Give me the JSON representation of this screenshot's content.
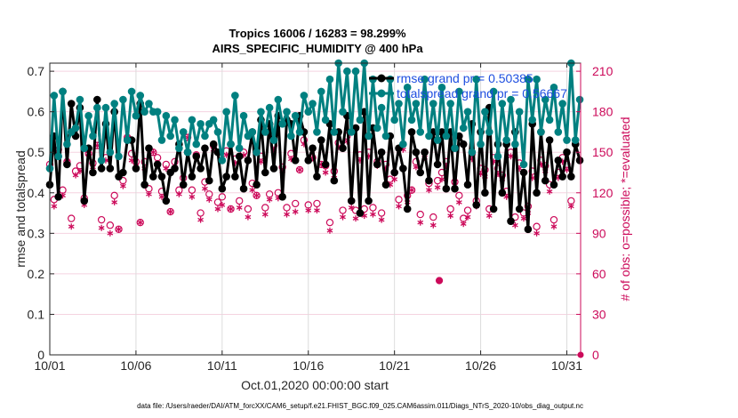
{
  "chart_data": {
    "type": "line",
    "title": "Tropics 16006 / 16283 = 98.299%",
    "subtitle": "AIRS_SPECIFIC_HUMIDITY @ 400 hPa",
    "xlabel": "Oct.01,2020 00:00:00 start",
    "ylabel": "rmse and totalspread",
    "ylabel_right": "# of obs: o=possible; *=evaluated",
    "footer": "data file: /Users/raeder/DAI/ATM_forcXX/CAM6_setup/f.e21.FHIST_BGC.f09_025.CAM6assim.011/Diags_NTrS_2020-10/obs_diag_output.nc",
    "x_unit": "days since Oct.01,2020",
    "xlim": [
      0,
      30.8
    ],
    "ylim": [
      0,
      0.72
    ],
    "ylim_right": [
      0,
      216
    ],
    "xticks": [
      0,
      5,
      10,
      15,
      20,
      25,
      30
    ],
    "xtick_labels": [
      "10/01",
      "10/06",
      "10/11",
      "10/16",
      "10/21",
      "10/26",
      "10/31"
    ],
    "yticks": [
      0,
      0.1,
      0.2,
      0.3,
      0.4,
      0.5,
      0.6,
      0.7
    ],
    "ytick_labels": [
      "0",
      "0.1",
      "0.2",
      "0.3",
      "0.4",
      "0.5",
      "0.6",
      "0.7"
    ],
    "yticks_right": [
      0,
      30,
      60,
      90,
      120,
      150,
      180,
      210
    ],
    "ytick_labels_right": [
      "0",
      "30",
      "60",
      "90",
      "120",
      "150",
      "180",
      "210"
    ],
    "grid": "on",
    "legend_position": "top-right",
    "legend": [
      {
        "label": "rmse grand pr = 0.50385",
        "color": "#000000"
      },
      {
        "label": "totalspread grand pr = 0.56667",
        "color": "#008080"
      }
    ],
    "colors": {
      "rmse": "#000000",
      "totalspread": "#008080",
      "obs": "#cc0a5a",
      "legend_text": "#1f4fe0"
    },
    "x": [
      0,
      0.25,
      0.5,
      0.75,
      1,
      1.25,
      1.5,
      1.75,
      2,
      2.25,
      2.5,
      2.75,
      3,
      3.25,
      3.5,
      3.75,
      4,
      4.25,
      4.5,
      4.75,
      5,
      5.25,
      5.5,
      5.75,
      6,
      6.25,
      6.5,
      6.75,
      7,
      7.25,
      7.5,
      7.75,
      8,
      8.25,
      8.5,
      8.75,
      9,
      9.25,
      9.5,
      9.75,
      10,
      10.25,
      10.5,
      10.75,
      11,
      11.25,
      11.5,
      11.75,
      12,
      12.25,
      12.5,
      12.75,
      13,
      13.25,
      13.5,
      13.75,
      14,
      14.25,
      14.5,
      14.75,
      15,
      15.25,
      15.5,
      15.75,
      16,
      16.25,
      16.5,
      16.75,
      17,
      17.25,
      17.5,
      17.75,
      18,
      18.25,
      18.5,
      18.75,
      19,
      19.25,
      19.5,
      19.75,
      20,
      20.25,
      20.5,
      20.75,
      21,
      21.25,
      21.5,
      21.75,
      22,
      22.25,
      22.5,
      22.75,
      23,
      23.25,
      23.5,
      23.75,
      24,
      24.25,
      24.5,
      24.75,
      25,
      25.25,
      25.5,
      25.75,
      26,
      26.25,
      26.5,
      26.75,
      27,
      27.25,
      27.5,
      27.75,
      28,
      28.25,
      28.5,
      28.75,
      29,
      29.25,
      29.5,
      29.75,
      30,
      30.25,
      30.5,
      30.75
    ],
    "series": [
      {
        "name": "rmse",
        "values": [
          0.42,
          0.54,
          0.39,
          0.65,
          0.47,
          0.62,
          0.54,
          0.61,
          0.38,
          0.51,
          0.45,
          0.63,
          0.46,
          0.57,
          0.46,
          0.6,
          0.44,
          0.45,
          0.53,
          0.53,
          0.46,
          0.62,
          0.42,
          0.51,
          0.44,
          0.47,
          0.44,
          0.38,
          0.45,
          0.46,
          0.52,
          0.42,
          0.5,
          0.44,
          0.49,
          0.46,
          0.51,
          0.43,
          0.52,
          0.5,
          0.41,
          0.44,
          0.52,
          0.44,
          0.49,
          0.41,
          0.48,
          0.55,
          0.42,
          0.58,
          0.45,
          0.57,
          0.46,
          0.59,
          0.39,
          0.58,
          0.57,
          0.48,
          0.59,
          0.55,
          0.48,
          0.51,
          0.44,
          0.53,
          0.47,
          0.57,
          0.43,
          0.55,
          0.51,
          0.59,
          0.38,
          0.56,
          0.35,
          0.6,
          0.38,
          0.56,
          0.47,
          0.5,
          0.42,
          0.54,
          0.45,
          0.51,
          0.46,
          0.36,
          0.55,
          0.5,
          0.45,
          0.5,
          0.43,
          0.55,
          0.47,
          0.55,
          0.41,
          0.55,
          0.41,
          0.54,
          0.52,
          0.42,
          0.57,
          0.37,
          0.55,
          0.4,
          0.61,
          0.36,
          0.52,
          0.4,
          0.52,
          0.33,
          0.55,
          0.36,
          0.45,
          0.31,
          0.57,
          0.4,
          0.55,
          0.43,
          0.53,
          0.42,
          0.48,
          0.44,
          0.5,
          0.44,
          0.52,
          0.48
        ]
      },
      {
        "name": "totalspread",
        "values": [
          0.46,
          0.64,
          0.49,
          0.65,
          0.52,
          0.55,
          0.56,
          0.63,
          0.51,
          0.59,
          0.54,
          0.61,
          0.48,
          0.61,
          0.5,
          0.62,
          0.49,
          0.63,
          0.53,
          0.65,
          0.59,
          0.64,
          0.6,
          0.62,
          0.6,
          0.6,
          0.53,
          0.59,
          0.54,
          0.58,
          0.51,
          0.55,
          0.5,
          0.58,
          0.52,
          0.57,
          0.54,
          0.57,
          0.58,
          0.55,
          0.48,
          0.6,
          0.52,
          0.64,
          0.51,
          0.59,
          0.54,
          0.55,
          0.5,
          0.6,
          0.55,
          0.61,
          0.53,
          0.63,
          0.57,
          0.6,
          0.54,
          0.59,
          0.55,
          0.64,
          0.6,
          0.62,
          0.55,
          0.65,
          0.58,
          0.68,
          0.55,
          0.72,
          0.6,
          0.7,
          0.55,
          0.7,
          0.58,
          0.72,
          0.54,
          0.68,
          0.56,
          0.61,
          0.54,
          0.68,
          0.58,
          0.62,
          0.52,
          0.66,
          0.58,
          0.62,
          0.55,
          0.68,
          0.54,
          0.62,
          0.53,
          0.66,
          0.54,
          0.62,
          0.51,
          0.65,
          0.56,
          0.6,
          0.5,
          0.68,
          0.52,
          0.6,
          0.55,
          0.65,
          0.49,
          0.62,
          0.53,
          0.63,
          0.52,
          0.6,
          0.47,
          0.68,
          0.58,
          0.68,
          0.55,
          0.63,
          0.58,
          0.66,
          0.55,
          0.62,
          0.53,
          0.72,
          0.53,
          0.63
        ]
      },
      {
        "name": "obs_possible",
        "axis": "right",
        "marker": "o",
        "values": [
          141,
          115,
          152,
          122,
          143,
          101,
          136,
          140,
          116,
          149,
          142,
          155,
          100,
          146,
          96,
          118,
          93,
          129,
          161,
          149,
          143,
          98,
          143,
          123,
          150,
          146,
          121,
          141,
          106,
          143,
          122,
          131,
          161,
          122,
          148,
          105,
          128,
          119,
          155,
          113,
          117,
          151,
          108,
          145,
          114,
          150,
          108,
          127,
          118,
          147,
          109,
          119,
          155,
          120,
          139,
          109,
          149,
          112,
          137,
          159,
          111,
          146,
          112,
          141,
          140,
          98,
          136,
          157,
          107,
          162,
          114,
          107,
          148,
          108,
          150,
          109,
          143,
          105,
          141,
          130,
          135,
          115,
          156,
          118,
          122,
          143,
          104,
          150,
          127,
          102,
          129,
          135,
          143,
          108,
          128,
          118,
          101,
          107,
          149,
          114,
          138,
          137,
          108,
          146,
          138,
          133,
          121,
          150,
          102,
          142,
          105,
          110,
          136,
          95,
          144,
          140,
          126,
          100,
          135,
          146,
          141,
          114
        ]
      },
      {
        "name": "obs_evaluated",
        "axis": "right",
        "marker": "*",
        "values": [
          138,
          110,
          152,
          118,
          143,
          95,
          133,
          136,
          111,
          149,
          139,
          155,
          94,
          144,
          90,
          113,
          93,
          125,
          161,
          144,
          140,
          98,
          138,
          119,
          150,
          142,
          117,
          138,
          106,
          139,
          119,
          126,
          161,
          117,
          146,
          100,
          123,
          115,
          152,
          108,
          111,
          148,
          108,
          142,
          109,
          148,
          102,
          122,
          118,
          143,
          104,
          115,
          152,
          116,
          136,
          104,
          145,
          106,
          137,
          156,
          107,
          146,
          107,
          141,
          135,
          92,
          131,
          154,
          102,
          158,
          109,
          101,
          144,
          103,
          147,
          104,
          140,
          100,
          138,
          126,
          130,
          110,
          152,
          113,
          122,
          139,
          98,
          146,
          122,
          96,
          124,
          130,
          140,
          103,
          128,
          113,
          97,
          102,
          145,
          110,
          134,
          132,
          103,
          143,
          134,
          130,
          117,
          147,
          96,
          138,
          101,
          105,
          131,
          90,
          141,
          136,
          121,
          95,
          131,
          143,
          137,
          110
        ]
      },
      {
        "name": "obs_outlier",
        "axis": "right",
        "marker": "*o",
        "x": [
          22.6
        ],
        "values": [
          55
        ]
      }
    ]
  }
}
